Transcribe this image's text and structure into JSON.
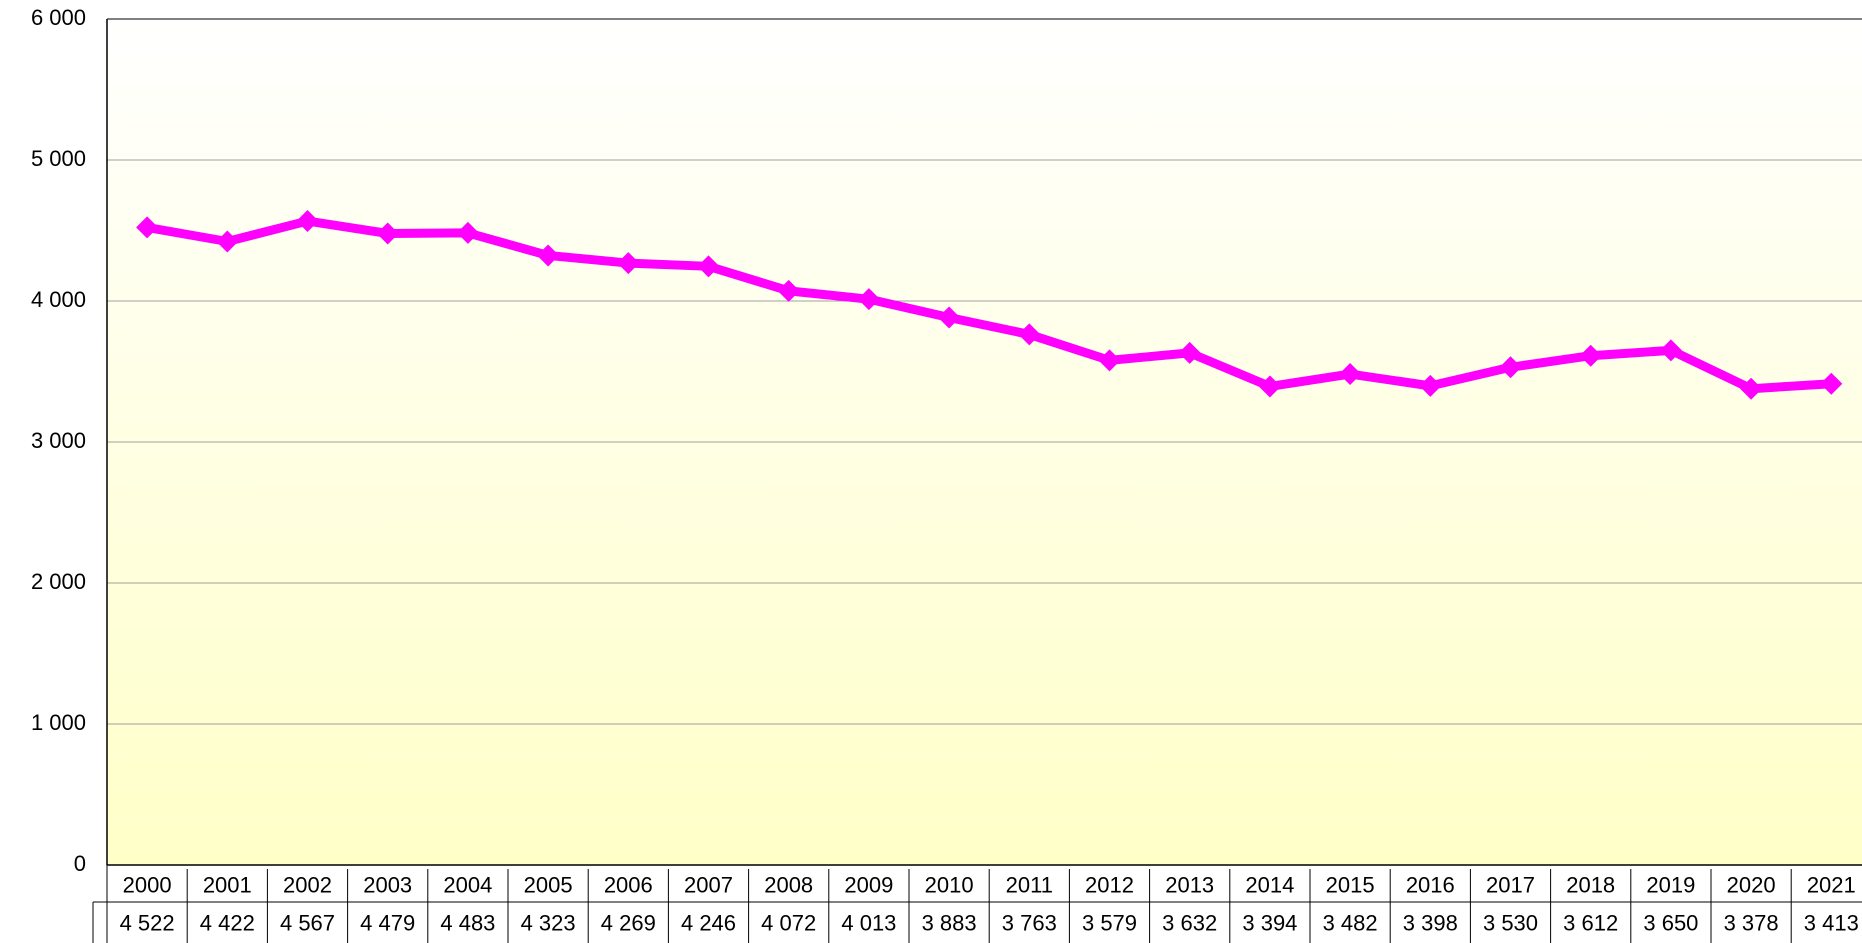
{
  "chart_data": {
    "type": "line",
    "categories": [
      "2000",
      "2001",
      "2002",
      "2003",
      "2004",
      "2005",
      "2006",
      "2007",
      "2008",
      "2009",
      "2010",
      "2011",
      "2012",
      "2013",
      "2014",
      "2015",
      "2016",
      "2017",
      "2018",
      "2019",
      "2020",
      "2021"
    ],
    "series": [
      {
        "color": "#ff00ff",
        "values": [
          4522,
          4422,
          4567,
          4479,
          4483,
          4323,
          4269,
          4246,
          4072,
          4013,
          3883,
          3763,
          3579,
          3632,
          3394,
          3482,
          3398,
          3530,
          3612,
          3650,
          3378,
          3413
        ],
        "value_labels": [
          "4 522",
          "4 422",
          "4 567",
          "4 479",
          "4 483",
          "4 323",
          "4 269",
          "4 246",
          "4 072",
          "4 013",
          "3 883",
          "3 763",
          "3 579",
          "3 632",
          "3 394",
          "3 482",
          "3 398",
          "3 530",
          "3 612",
          "3 650",
          "3 378",
          "3 413"
        ]
      }
    ],
    "ylim": [
      0,
      6000
    ],
    "yticks": [
      0,
      {
        "value": 1000,
        "label": "1 000"
      },
      {
        "value": 2000,
        "label": "2 000"
      },
      {
        "value": 3000,
        "label": "3 000"
      },
      {
        "value": 4000,
        "label": "4 000"
      },
      {
        "value": 5000,
        "label": "5 000"
      },
      {
        "value": 6000,
        "label": "6 000"
      }
    ],
    "grid": true
  }
}
